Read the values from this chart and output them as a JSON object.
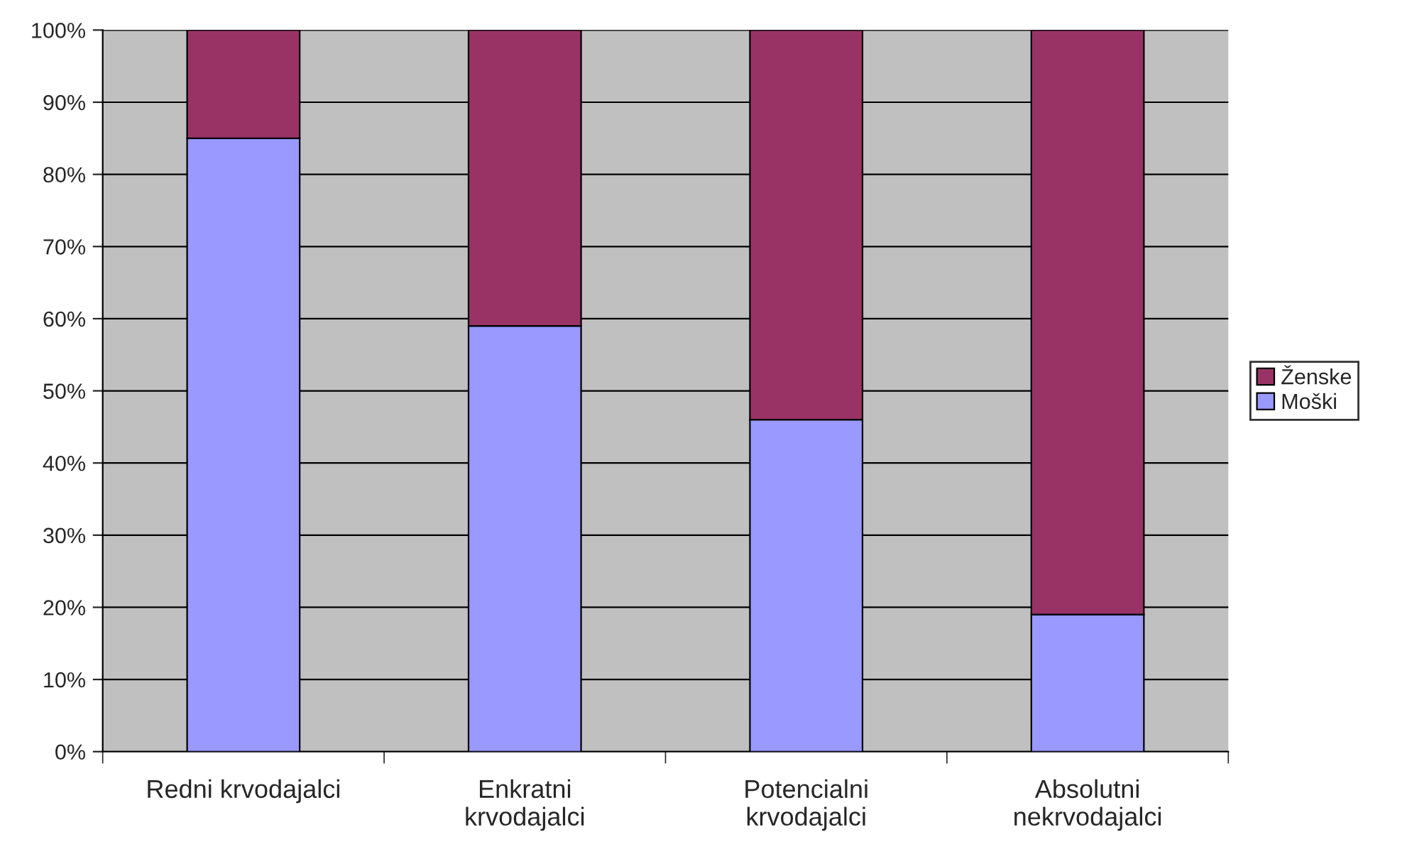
{
  "chart_data": {
    "type": "bar",
    "stacked": true,
    "categories": [
      "Redni krvodajalci",
      "Enkratni\nkrvodajalci",
      "Potencialni\nkrvodajalci",
      "Absolutni\nnekrvodajalci"
    ],
    "series": [
      {
        "name": "Moški",
        "color": "#9999ff",
        "values": [
          85,
          59,
          46,
          19
        ]
      },
      {
        "name": "Ženske",
        "color": "#993366",
        "values": [
          15,
          41,
          54,
          81
        ]
      }
    ],
    "ylim": [
      0,
      100
    ],
    "yticks": [
      {
        "value": 0,
        "label": "0%"
      },
      {
        "value": 10,
        "label": "10%"
      },
      {
        "value": 20,
        "label": "20%"
      },
      {
        "value": 30,
        "label": "30%"
      },
      {
        "value": 40,
        "label": "40%"
      },
      {
        "value": 50,
        "label": "50%"
      },
      {
        "value": 60,
        "label": "60%"
      },
      {
        "value": 70,
        "label": "70%"
      },
      {
        "value": 80,
        "label": "80%"
      },
      {
        "value": 90,
        "label": "90%"
      },
      {
        "value": 100,
        "label": "100%"
      }
    ],
    "grid": "y",
    "legend": "right"
  }
}
